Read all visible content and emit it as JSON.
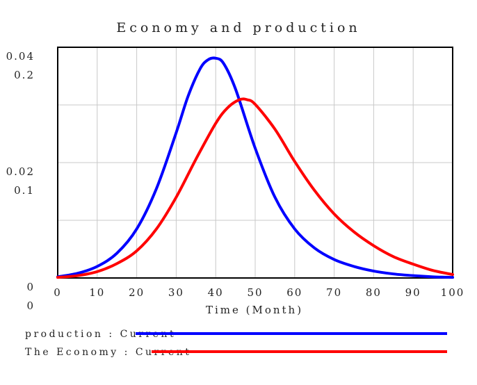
{
  "chart_data": {
    "type": "line",
    "title": "Economy and production",
    "xlabel": "Time (Month)",
    "xlim": [
      0,
      100
    ],
    "x_ticks": [
      "0",
      "10",
      "20",
      "30",
      "40",
      "50",
      "60",
      "70",
      "80",
      "90",
      "100"
    ],
    "y_axes": [
      {
        "name": "production",
        "ylim": [
          0,
          0.04
        ],
        "tick_labels": [
          "0.04",
          "0.02",
          "0"
        ]
      },
      {
        "name": "The Economy",
        "ylim": [
          0,
          0.2
        ],
        "tick_labels": [
          "0.2",
          "0.1",
          "0"
        ]
      }
    ],
    "grid": true,
    "legend_position": "bottom",
    "series": [
      {
        "name": "production : Current",
        "axis": 0,
        "color": "#0000ff",
        "x": [
          0,
          5,
          10,
          15,
          20,
          25,
          30,
          33,
          36,
          38,
          40,
          42,
          45,
          50,
          55,
          60,
          65,
          70,
          75,
          80,
          85,
          90,
          95,
          100
        ],
        "y": [
          0.0002,
          0.0008,
          0.002,
          0.0043,
          0.0085,
          0.0155,
          0.0252,
          0.0315,
          0.0362,
          0.0378,
          0.0381,
          0.0372,
          0.0328,
          0.0225,
          0.014,
          0.0085,
          0.0052,
          0.0032,
          0.002,
          0.0012,
          0.0007,
          0.0004,
          0.0002,
          0.0001
        ]
      },
      {
        "name": "The Economy : Current",
        "axis": 1,
        "color": "#ff0000",
        "x": [
          0,
          5,
          10,
          15,
          20,
          25,
          30,
          35,
          40,
          43,
          46,
          48,
          50,
          55,
          60,
          65,
          70,
          75,
          80,
          85,
          90,
          95,
          100
        ],
        "y": [
          0.0005,
          0.002,
          0.0055,
          0.0125,
          0.0235,
          0.0425,
          0.07,
          0.103,
          0.134,
          0.1475,
          0.1545,
          0.1545,
          0.1505,
          0.129,
          0.101,
          0.076,
          0.0555,
          0.04,
          0.028,
          0.0185,
          0.012,
          0.0065,
          0.003
        ]
      }
    ]
  }
}
